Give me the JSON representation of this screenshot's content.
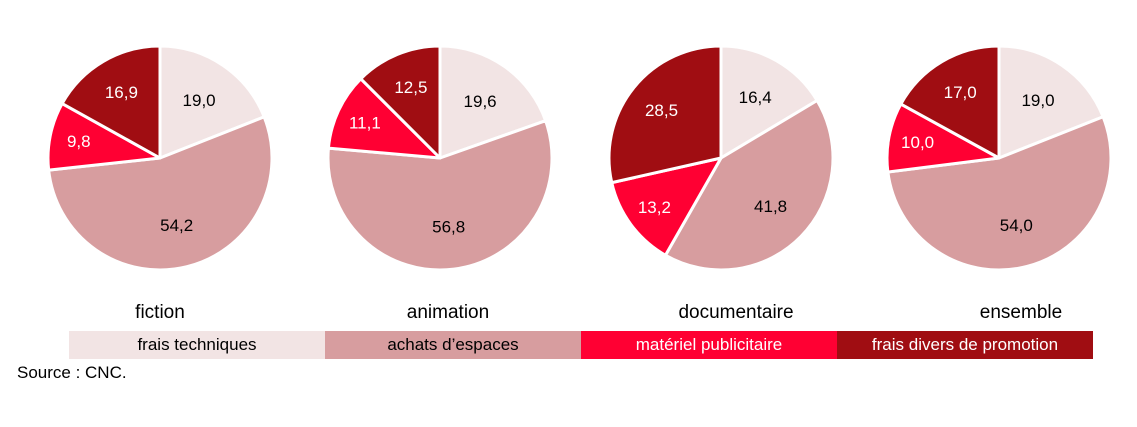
{
  "colors": {
    "frais_techniques": "#f2e4e4",
    "achats_espaces": "#d79d9f",
    "materiel_publicitaire": "#ff0033",
    "frais_divers": "#a00d12"
  },
  "legend": [
    {
      "label": "frais techniques",
      "color": "#f2e4e4",
      "text_color": "#000000"
    },
    {
      "label": "achats d’espaces",
      "color": "#d79d9f",
      "text_color": "#000000"
    },
    {
      "label": "matériel publicitaire",
      "color": "#ff0033",
      "text_color": "#ffffff"
    },
    {
      "label": "frais divers de promotion",
      "color": "#a00d12",
      "text_color": "#ffffff"
    }
  ],
  "source": "Source : CNC.",
  "chart_data": [
    {
      "type": "pie",
      "title": "fiction",
      "categories": [
        "frais techniques",
        "achats d’espaces",
        "matériel publicitaire",
        "frais divers de promotion"
      ],
      "values": [
        19.0,
        54.2,
        9.8,
        16.9
      ],
      "labels": [
        "19,0",
        "54,2",
        "9,8",
        "16,9"
      ]
    },
    {
      "type": "pie",
      "title": "animation",
      "categories": [
        "frais techniques",
        "achats d’espaces",
        "matériel publicitaire",
        "frais divers de promotion"
      ],
      "values": [
        19.6,
        56.8,
        11.1,
        12.5
      ],
      "labels": [
        "19,6",
        "56,8",
        "11,1",
        "12,5"
      ]
    },
    {
      "type": "pie",
      "title": "documentaire",
      "categories": [
        "frais techniques",
        "achats d’espaces",
        "matériel publicitaire",
        "frais divers de promotion"
      ],
      "values": [
        16.4,
        41.8,
        13.2,
        28.5
      ],
      "labels": [
        "16,4",
        "41,8",
        "13,2",
        "28,5"
      ]
    },
    {
      "type": "pie",
      "title": "ensemble",
      "categories": [
        "frais techniques",
        "achats d’espaces",
        "matériel publicitaire",
        "frais divers de promotion"
      ],
      "values": [
        19.0,
        54.0,
        10.0,
        17.0
      ],
      "labels": [
        "19,0",
        "54,0",
        "10,0",
        "17,0"
      ]
    }
  ]
}
